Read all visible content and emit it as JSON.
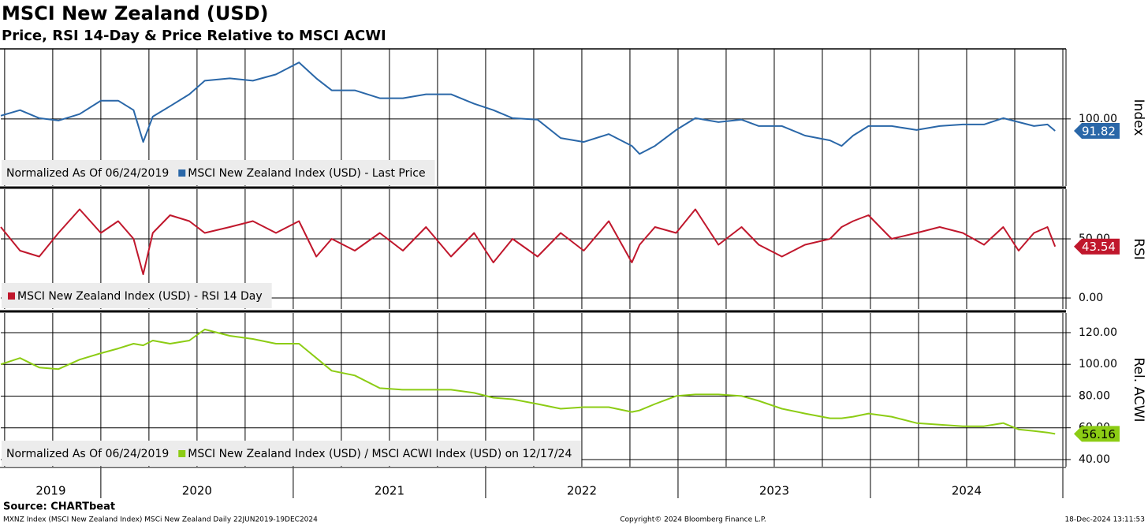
{
  "title": "MSCI New Zealand (USD)",
  "subtitle": "Price, RSI 14-Day & Price Relative to MSCI ACWI",
  "source": "Source: CHARTbeat",
  "footer": {
    "left": "MXNZ Index (MSCI New Zealand Index) MSCi New Zealand  Daily 22JUN2019-19DEC2024",
    "center": "Copyright© 2024 Bloomberg Finance L.P.",
    "right": "18-Dec-2024 13:11:53"
  },
  "chart_data": [
    {
      "type": "line",
      "axis_title": "Index",
      "legend_note": "Normalized As Of 06/24/2019",
      "grid": true,
      "last_value_box": true,
      "x": [
        2019.48,
        2019.58,
        2019.68,
        2019.78,
        2019.89,
        2020.0,
        2020.09,
        2020.17,
        2020.22,
        2020.27,
        2020.36,
        2020.46,
        2020.54,
        2020.67,
        2020.79,
        2020.91,
        2021.03,
        2021.12,
        2021.2,
        2021.32,
        2021.45,
        2021.57,
        2021.69,
        2021.82,
        2021.94,
        2022.04,
        2022.14,
        2022.27,
        2022.39,
        2022.51,
        2022.64,
        2022.76,
        2022.8,
        2022.88,
        2022.99,
        2023.09,
        2023.21,
        2023.33,
        2023.42,
        2023.54,
        2023.66,
        2023.79,
        2023.85,
        2023.91,
        2023.99,
        2024.11,
        2024.24,
        2024.36,
        2024.48,
        2024.59,
        2024.69,
        2024.77,
        2024.85,
        2024.92,
        2024.96
      ],
      "xlim": [
        2019.48,
        2025
      ],
      "ylim": [
        54,
        148
      ],
      "yticks": [
        {
          "value": 100,
          "label": "100.00"
        }
      ],
      "series": [
        {
          "name": "MSCI New Zealand Index (USD) - Last Price",
          "color": "#2a67a8",
          "values": [
            102.2,
            106.0,
            100.5,
            98.9,
            103.3,
            112.5,
            112.5,
            106.0,
            84.2,
            101.6,
            108.7,
            116.9,
            126.2,
            127.8,
            126.2,
            130.5,
            138.7,
            127.8,
            119.6,
            119.6,
            114.2,
            114.2,
            116.9,
            116.9,
            110.4,
            106.0,
            100.5,
            99.5,
            86.9,
            84.2,
            89.6,
            81.5,
            76.0,
            81.5,
            92.4,
            100.5,
            97.8,
            99.5,
            95.1,
            95.1,
            88.6,
            85.3,
            81.5,
            88.6,
            95.1,
            95.1,
            92.4,
            95.1,
            96.2,
            96.2,
            100.5,
            97.8,
            95.1,
            96.2,
            91.82
          ]
        }
      ]
    },
    {
      "type": "line",
      "axis_title": "RSI",
      "grid": true,
      "last_value_box": true,
      "x": [
        2019.48,
        2019.58,
        2019.68,
        2019.78,
        2019.89,
        2020.0,
        2020.09,
        2020.17,
        2020.22,
        2020.27,
        2020.36,
        2020.46,
        2020.54,
        2020.67,
        2020.79,
        2020.91,
        2021.03,
        2021.12,
        2021.2,
        2021.32,
        2021.45,
        2021.57,
        2021.69,
        2021.82,
        2021.94,
        2022.04,
        2022.14,
        2022.27,
        2022.39,
        2022.51,
        2022.64,
        2022.76,
        2022.8,
        2022.88,
        2022.99,
        2023.09,
        2023.21,
        2023.33,
        2023.42,
        2023.54,
        2023.66,
        2023.79,
        2023.85,
        2023.91,
        2023.99,
        2024.11,
        2024.24,
        2024.36,
        2024.48,
        2024.59,
        2024.69,
        2024.77,
        2024.85,
        2024.92,
        2024.96
      ],
      "xlim": [
        2019.48,
        2025
      ],
      "ylim": [
        -9.3,
        92
      ],
      "yticks": [
        {
          "value": 50,
          "label": "50.00"
        },
        {
          "value": 0,
          "label": "0.00"
        }
      ],
      "series": [
        {
          "name": "MSCI New Zealand Index (USD) - RSI 14 Day",
          "color": "#c0172c",
          "values": [
            60,
            40,
            35,
            55,
            75,
            55,
            65,
            50,
            20,
            55,
            70,
            65,
            55,
            60,
            65,
            55,
            65,
            35,
            50,
            40,
            55,
            40,
            60,
            35,
            55,
            30,
            50,
            35,
            55,
            40,
            65,
            30,
            45,
            60,
            55,
            75,
            45,
            60,
            45,
            35,
            45,
            50,
            60,
            65,
            70,
            50,
            55,
            60,
            55,
            45,
            60,
            40,
            55,
            60,
            43.54
          ]
        }
      ]
    },
    {
      "type": "line",
      "axis_title": "Rel. ACWI",
      "legend_note": "Normalized As Of 06/24/2019",
      "grid": true,
      "last_value_box": true,
      "x": [
        2019.48,
        2019.58,
        2019.68,
        2019.78,
        2019.89,
        2020.0,
        2020.09,
        2020.17,
        2020.22,
        2020.27,
        2020.36,
        2020.46,
        2020.54,
        2020.67,
        2020.79,
        2020.91,
        2021.03,
        2021.12,
        2021.2,
        2021.32,
        2021.45,
        2021.57,
        2021.69,
        2021.82,
        2021.94,
        2022.04,
        2022.14,
        2022.27,
        2022.39,
        2022.51,
        2022.64,
        2022.76,
        2022.8,
        2022.88,
        2022.99,
        2023.09,
        2023.21,
        2023.33,
        2023.42,
        2023.54,
        2023.66,
        2023.79,
        2023.85,
        2023.91,
        2023.99,
        2024.11,
        2024.24,
        2024.36,
        2024.48,
        2024.59,
        2024.69,
        2024.77,
        2024.85,
        2024.92,
        2024.96
      ],
      "xlim": [
        2019.48,
        2025
      ],
      "ylim": [
        35.5,
        132.4
      ],
      "yticks": [
        {
          "value": 120,
          "label": "120.00"
        },
        {
          "value": 100,
          "label": "100.00"
        },
        {
          "value": 80,
          "label": "80.00"
        },
        {
          "value": 60,
          "label": "60.00"
        },
        {
          "value": 40,
          "label": "40.00"
        }
      ],
      "xticks": [
        2020,
        2021,
        2022,
        2023,
        2024,
        2025
      ],
      "x_minor_ticks": [
        2019.5,
        2019.75,
        2020.25,
        2020.5,
        2020.75,
        2021.25,
        2021.5,
        2021.75,
        2022.25,
        2022.5,
        2022.75,
        2023.25,
        2023.5,
        2023.75,
        2024.25,
        2024.5,
        2024.75
      ],
      "year_labels": [
        2019,
        2020,
        2021,
        2022,
        2023,
        2024
      ],
      "series": [
        {
          "name": "MSCI New Zealand Index (USD) / MSCI ACWI Index (USD) on 12/17/24",
          "color": "#8ccc14",
          "values": [
            100,
            104,
            98,
            97,
            103,
            107,
            110,
            113,
            112,
            115,
            113,
            115,
            122,
            118,
            116,
            113,
            113,
            104,
            96,
            93,
            85,
            84,
            84,
            84,
            82,
            79,
            78,
            75,
            72,
            73,
            73,
            70,
            71,
            75,
            80,
            81,
            81,
            80,
            77,
            72,
            69,
            66,
            66,
            67,
            69,
            67,
            63,
            62,
            61,
            61,
            63,
            59,
            58,
            57,
            56.16
          ]
        }
      ]
    }
  ]
}
